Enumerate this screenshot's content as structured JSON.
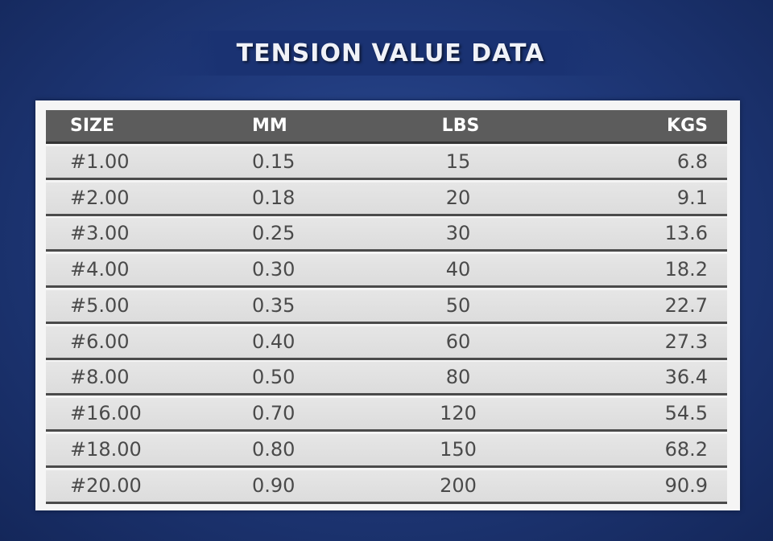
{
  "title": "TENSION VALUE DATA",
  "chart_data": {
    "type": "table",
    "title": "TENSION VALUE DATA",
    "columns": [
      "SIZE",
      "MM",
      "LBS",
      "KGS"
    ],
    "rows": [
      [
        "#1.00",
        "0.15",
        "15",
        "6.8"
      ],
      [
        "#2.00",
        "0.18",
        "20",
        "9.1"
      ],
      [
        "#3.00",
        "0.25",
        "30",
        "13.6"
      ],
      [
        "#4.00",
        "0.30",
        "40",
        "18.2"
      ],
      [
        "#5.00",
        "0.35",
        "50",
        "22.7"
      ],
      [
        "#6.00",
        "0.40",
        "60",
        "27.3"
      ],
      [
        "#8.00",
        "0.50",
        "80",
        "36.4"
      ],
      [
        "#16.00",
        "0.70",
        "120",
        "54.5"
      ],
      [
        "#18.00",
        "0.80",
        "150",
        "68.2"
      ],
      [
        "#20.00",
        "0.90",
        "200",
        "90.9"
      ]
    ]
  },
  "colors": {
    "background": "#203a7c",
    "header_bg": "#5c5c5c",
    "row_bg": "#e2e2e2",
    "text": "#4a4a4a"
  }
}
